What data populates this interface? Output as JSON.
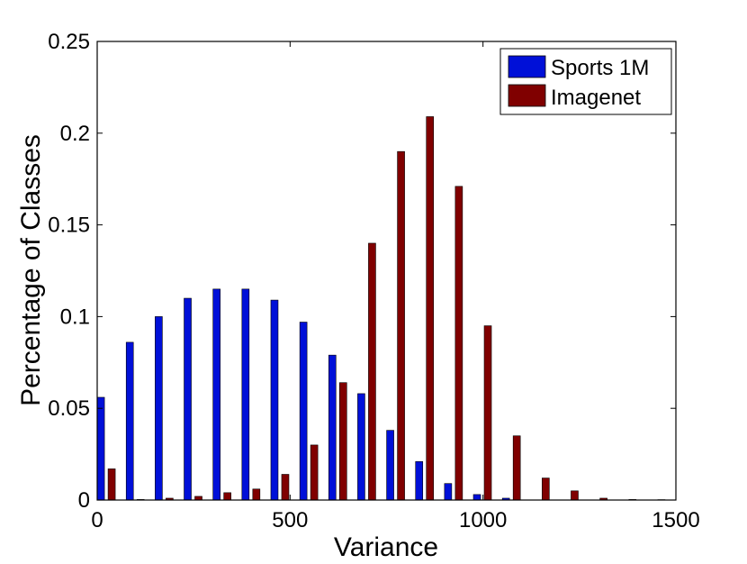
{
  "chart_data": {
    "type": "bar",
    "xlabel": "Variance",
    "ylabel": "Percentage of Classes",
    "xlim": [
      0,
      1500
    ],
    "ylim": [
      0,
      0.25
    ],
    "xticks": [
      "0",
      "500",
      "1000",
      "1500"
    ],
    "yticks": [
      "0",
      "0.05",
      "0.1",
      "0.15",
      "0.2",
      "0.25"
    ],
    "grid": false,
    "legend_position": "top-right",
    "x": [
      37.5,
      112.5,
      187.5,
      262.5,
      337.5,
      412.5,
      487.5,
      562.5,
      637.5,
      712.5,
      787.5,
      862.5,
      937.5,
      1012.5,
      1087.5,
      1162.5,
      1237.5,
      1312.5,
      1387.5,
      1462.5
    ],
    "series": [
      {
        "name": "Sports 1M",
        "color": "#0010d8",
        "values": [
          0.056,
          0.086,
          0.1,
          0.11,
          0.115,
          0.115,
          0.109,
          0.097,
          0.079,
          0.058,
          0.038,
          0.021,
          0.009,
          0.003,
          0.001,
          0,
          0,
          0,
          0,
          0
        ]
      },
      {
        "name": "Imagenet",
        "color": "#800000",
        "values": [
          0.017,
          0.0003,
          0.001,
          0.002,
          0.004,
          0.006,
          0.014,
          0.03,
          0.064,
          0.14,
          0.19,
          0.209,
          0.171,
          0.095,
          0.035,
          0.012,
          0.005,
          0.001,
          0.0003,
          0.0002
        ]
      }
    ]
  }
}
